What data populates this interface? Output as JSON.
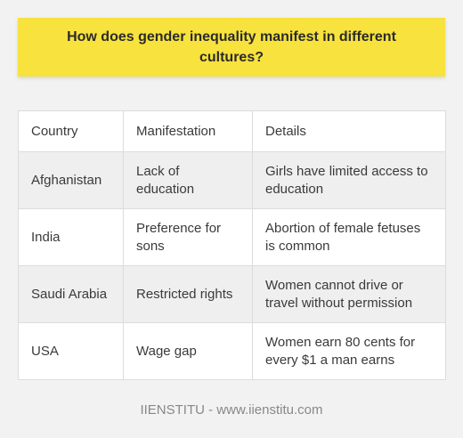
{
  "title": "How does gender inequality manifest in different cultures?",
  "table": {
    "headers": [
      "Country",
      "Manifestation",
      "Details"
    ],
    "rows": [
      [
        "Afghanistan",
        "Lack of education",
        "Girls have limited access to education"
      ],
      [
        "India",
        "Preference for sons",
        "Abortion of female fetuses is common"
      ],
      [
        "Saudi Arabia",
        "Restricted rights",
        "Women cannot drive or travel without permission"
      ],
      [
        "USA",
        "Wage gap",
        "Women earn 80 cents for every $1 a man earns"
      ]
    ]
  },
  "footer": "IIENSTITU - www.iienstitu.com",
  "colors": {
    "banner": "#f8e23d",
    "background": "#f2f2f2"
  }
}
